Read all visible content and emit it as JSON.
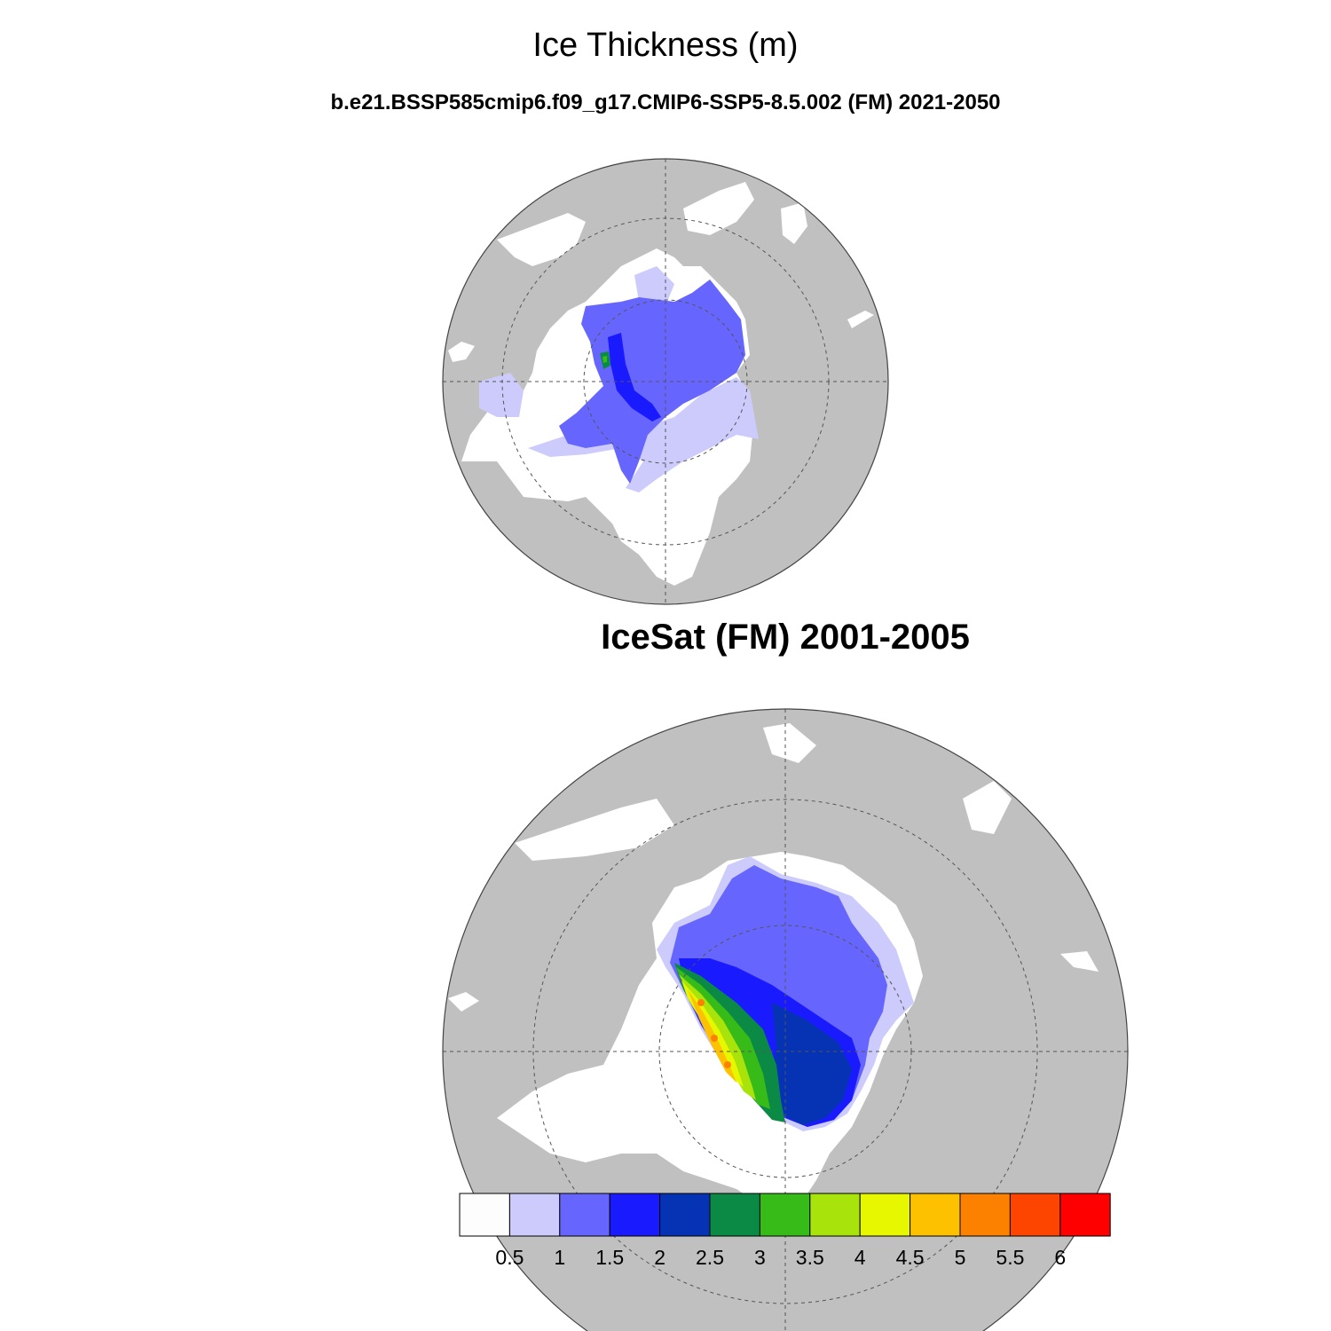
{
  "title": "Ice Thickness (m)",
  "model_panel": {
    "label": "b.e21.BSSP585cmip6.f09_g17.CMIP6-SSP5-8.5.002 (FM) 2021-2050"
  },
  "obs_panel": {
    "label": "IceSat (FM) 2001-2005"
  },
  "colorbar": {
    "labels": [
      "0.5",
      "1",
      "1.5",
      "2",
      "2.5",
      "3",
      "3.5",
      "4",
      "4.5",
      "5",
      "5.5",
      "6"
    ],
    "colors": [
      "#fdfdfd",
      "#cccbfb",
      "#6666ff",
      "#1a1aff",
      "#0632b4",
      "#0a8a45",
      "#36bb18",
      "#a8e30c",
      "#e6f700",
      "#fdc100",
      "#fd8100",
      "#fd4500",
      "#ff0000"
    ]
  },
  "colors": {
    "land": "#c0c0c0",
    "ocean": "#ffffff",
    "ice_thin": "#cccbfb",
    "ice_mid": "#6666ff",
    "ice_thick": "#1a1aff"
  }
}
